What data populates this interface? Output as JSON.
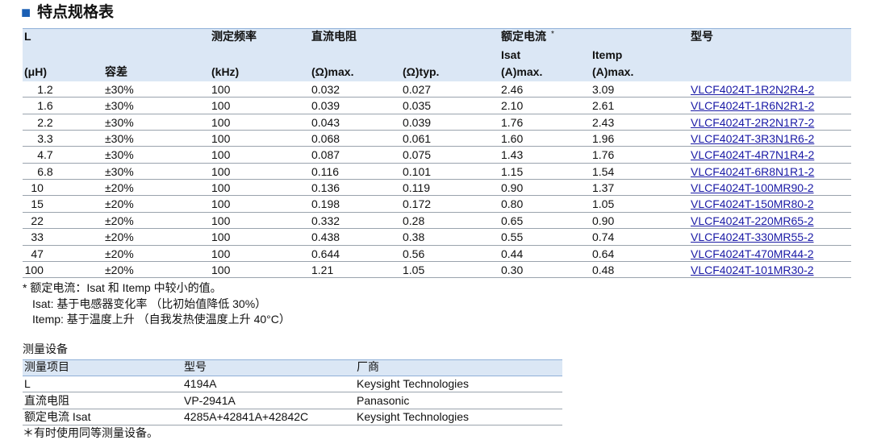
{
  "title": {
    "mark": "■",
    "text": "特点规格表"
  },
  "spec_table": {
    "header_rows": [
      [
        "L",
        null,
        "测定频率",
        "直流电阻",
        null,
        "额定电流",
        null,
        "型号"
      ],
      [
        null,
        null,
        null,
        null,
        null,
        "Isat",
        "Itemp",
        null
      ],
      [
        "(μH)",
        "容差",
        "(kHz)",
        "(Ω)max.",
        "(Ω)typ.",
        "(A)max.",
        "(A)max.",
        null
      ]
    ],
    "footnote_mark": "*",
    "rows": [
      [
        "1.2",
        "±30%",
        "100",
        "0.032",
        "0.027",
        "2.46",
        "3.09",
        "VLCF4024T-1R2N2R4-2"
      ],
      [
        "1.6",
        "±30%",
        "100",
        "0.039",
        "0.035",
        "2.10",
        "2.61",
        "VLCF4024T-1R6N2R1-2"
      ],
      [
        "2.2",
        "±30%",
        "100",
        "0.043",
        "0.039",
        "1.76",
        "2.43",
        "VLCF4024T-2R2N1R7-2"
      ],
      [
        "3.3",
        "±30%",
        "100",
        "0.068",
        "0.061",
        "1.60",
        "1.96",
        "VLCF4024T-3R3N1R6-2"
      ],
      [
        "4.7",
        "±30%",
        "100",
        "0.087",
        "0.075",
        "1.43",
        "1.76",
        "VLCF4024T-4R7N1R4-2"
      ],
      [
        "6.8",
        "±30%",
        "100",
        "0.116",
        "0.101",
        "1.15",
        "1.54",
        "VLCF4024T-6R8N1R1-2"
      ],
      [
        "10",
        "±20%",
        "100",
        "0.136",
        "0.119",
        "0.90",
        "1.37",
        "VLCF4024T-100MR90-2"
      ],
      [
        "15",
        "±20%",
        "100",
        "0.198",
        "0.172",
        "0.80",
        "1.05",
        "VLCF4024T-150MR80-2"
      ],
      [
        "22",
        "±20%",
        "100",
        "0.332",
        "0.28",
        "0.65",
        "0.90",
        "VLCF4024T-220MR65-2"
      ],
      [
        "33",
        "±20%",
        "100",
        "0.438",
        "0.38",
        "0.55",
        "0.74",
        "VLCF4024T-330MR55-2"
      ],
      [
        "47",
        "±20%",
        "100",
        "0.644",
        "0.56",
        "0.44",
        "0.64",
        "VLCF4024T-470MR44-2"
      ],
      [
        "100",
        "±20%",
        "100",
        "1.21",
        "1.05",
        "0.30",
        "0.48",
        "VLCF4024T-101MR30-2"
      ]
    ],
    "notes": [
      "*  额定电流：Isat 和 Itemp 中较小的值。",
      "Isat: 基于电感器变化率 （比初始值降低 30%）",
      "Itemp: 基于温度上升 （自我发热使温度上升 40°C）"
    ]
  },
  "equipment": {
    "title": "测量设备",
    "header": [
      "测量项目",
      "型号",
      "厂商"
    ],
    "rows": [
      [
        "L",
        "4194A",
        "Keysight Technologies"
      ],
      [
        "直流电阻",
        "VP-2941A",
        "Panasonic"
      ],
      [
        "额定电流 Isat",
        "4285A+42841A+42842C",
        "Keysight Technologies"
      ]
    ],
    "note": "＊有时使用同等测量设备。"
  }
}
